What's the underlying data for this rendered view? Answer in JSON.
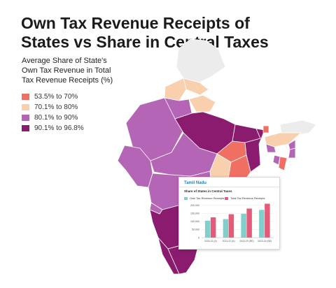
{
  "title": {
    "line1": "Own Tax Revenue Receipts of",
    "line2": "States vs Share in Central Taxes"
  },
  "legend": {
    "heading": [
      "Average Share of State's",
      "Own Tax Revenue in Total",
      "Tax Revenue Receipts (%)"
    ],
    "items": [
      {
        "label": "53.5% to 70%",
        "color": "#ef6f63"
      },
      {
        "label": "70.1% to 80%",
        "color": "#f8d0ad"
      },
      {
        "label": "80.1% to 90%",
        "color": "#b565b5"
      },
      {
        "label": "90.1% to 96.8%",
        "color": "#8a1b6e"
      }
    ]
  },
  "map": {
    "no_data_color": "#ececec",
    "hatch_color": "#b9b9b9"
  },
  "tooltip": {
    "state": "Tamil Nadu",
    "subtitle": "Share of States in Central Taxes",
    "chart_data": {
      "type": "bar",
      "title": "Share of States in Central Taxes",
      "categories": [
        "2020-21 (A)",
        "2021-22 (A)",
        "2022-23 (RE)",
        "2023-24 (BE)"
      ],
      "series": [
        {
          "name": "Own Tax Revenue Receipts",
          "color": "#7fd0cc",
          "values": [
            105000,
            115000,
            148000,
            172000
          ]
        },
        {
          "name": "Total Tax Revenue Receipts",
          "color": "#e55a79",
          "values": [
            126000,
            145000,
            180000,
            210000
          ]
        }
      ],
      "yticks": [
        "200,000",
        "150,000",
        "100,000",
        "50,000",
        "0"
      ],
      "ylim": [
        0,
        225000
      ],
      "grid": true,
      "legend": "top-left"
    }
  }
}
